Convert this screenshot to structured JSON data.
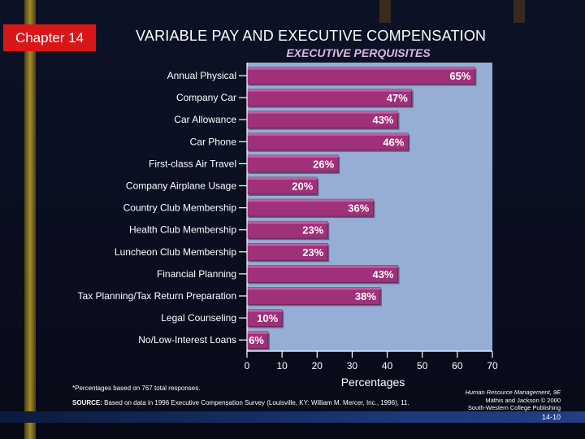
{
  "slide": {
    "chapter_label": "Chapter 14",
    "title": "VARIABLE PAY AND EXECUTIVE COMPENSATION",
    "credit_line1": "Human Resource Management, 9E",
    "credit_line2": "Mathis and Jackson © 2000",
    "credit_line3": "South-Western College Publishing",
    "page_number": "14-10",
    "colors": {
      "background": "#0a0e1f",
      "chapter_badge": "#d81818",
      "plot_area": "#96aed6",
      "bar": "#a0307a",
      "bar_top": "#c060a0",
      "stripe": "#b8a030"
    }
  },
  "chart_data": {
    "type": "bar",
    "orientation": "horizontal",
    "title": "EXECUTIVE PERQUISITES",
    "xlabel": "Percentages",
    "ylabel": "",
    "xlim": [
      0,
      70
    ],
    "xticks": [
      "0",
      "10",
      "20",
      "30",
      "40",
      "50",
      "60",
      "70"
    ],
    "grid": false,
    "categories": [
      "Annual Physical",
      "Company Car",
      "Car Allowance",
      "Car Phone",
      "First-class Air Travel",
      "Company Airplane Usage",
      "Country Club Membership",
      "Health Club Membership",
      "Luncheon Club Membership",
      "Financial Planning",
      "Tax Planning/Tax Return Preparation",
      "Legal Counseling",
      "No/Low-Interest Loans"
    ],
    "values": [
      65,
      47,
      43,
      46,
      26,
      20,
      36,
      23,
      23,
      43,
      38,
      10,
      6
    ],
    "data_labels": [
      "65%",
      "47%",
      "43%",
      "46%",
      "26%",
      "20%",
      "36%",
      "23%",
      "23%",
      "43%",
      "38%",
      "10%",
      "6%"
    ],
    "footnote": "*Percentages based on 767 total responses.",
    "source_prefix": "SOURCE:",
    "source_text": "Based on data in 1996 Executive Compensation Survey (Louisville, KY: William M. Mercer, Inc., 1996), 11."
  }
}
